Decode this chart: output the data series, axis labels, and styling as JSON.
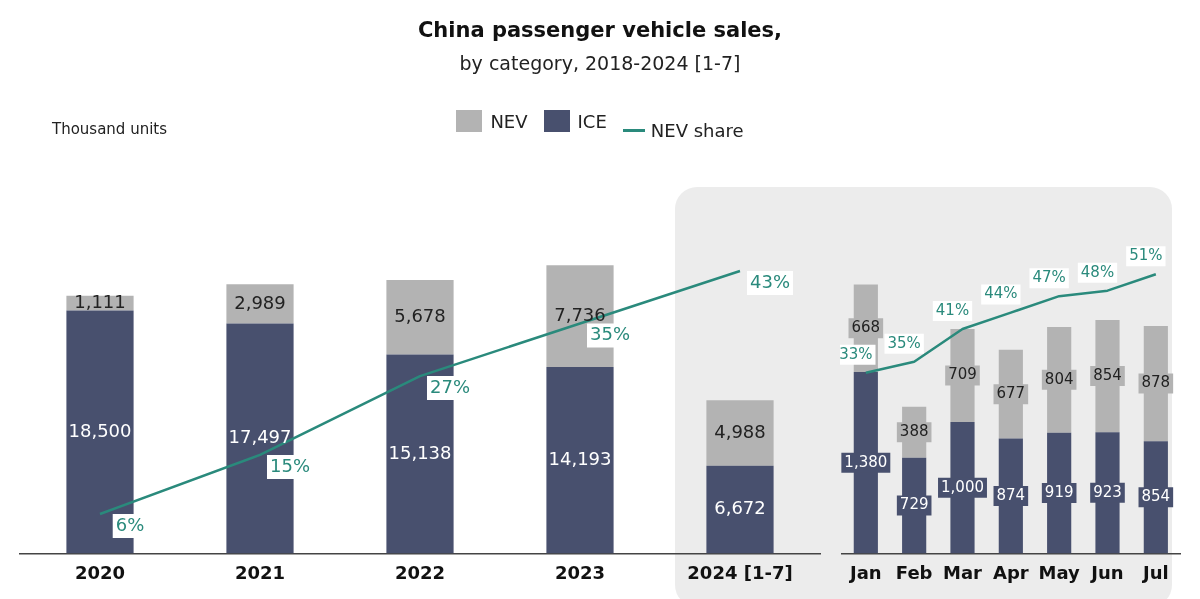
{
  "chart_data": [
    {
      "type": "bar",
      "title": "China passenger vehicle sales,",
      "subtitle": "by category, 2018-2024 [1-7]",
      "ylabel": "Thousand units",
      "categories": [
        "2020",
        "2021",
        "2022",
        "2023",
        "2024 [1-7]"
      ],
      "stacked": true,
      "legend": "top",
      "tick_labels": "x",
      "grid": false,
      "series": [
        {
          "name": "ICE",
          "color": "#48506e",
          "values": [
            18500,
            17497,
            15138,
            14193,
            6672
          ],
          "value_labels": [
            "18,500",
            "17,497",
            "15,138",
            "14,193",
            "6,672"
          ]
        },
        {
          "name": "NEV",
          "color": "#b3b3b3",
          "values": [
            1111,
            2989,
            5678,
            7736,
            4988
          ],
          "value_labels": [
            "1,111",
            "2,989",
            "5,678",
            "7,736",
            "4,988"
          ]
        },
        {
          "name": "NEV share",
          "type": "line",
          "axis": "y2",
          "color": "#2a8a7c",
          "values": [
            6,
            15,
            27,
            35,
            43
          ],
          "value_labels": [
            "6%",
            "15%",
            "27%",
            "35%",
            "43%"
          ]
        }
      ]
    },
    {
      "type": "bar",
      "categories": [
        "Jan",
        "Feb",
        "Mar",
        "Apr",
        "May",
        "Jun",
        "Jul"
      ],
      "stacked": true,
      "tick_labels": "x",
      "grid": false,
      "series": [
        {
          "color": "#48506e",
          "values": [
            1380,
            729,
            1000,
            874,
            919,
            923,
            854
          ],
          "value_labels": [
            "1,380",
            "729",
            "1,000",
            "874",
            "919",
            "923",
            "854"
          ]
        },
        {
          "color": "#b3b3b3",
          "values": [
            668,
            388,
            709,
            677,
            804,
            854,
            878
          ],
          "value_labels": [
            "668",
            "388",
            "709",
            "677",
            "804",
            "854",
            "878"
          ]
        },
        {
          "type": "line",
          "axis": "y2",
          "color": "#2a8a7c",
          "values": [
            33,
            35,
            41,
            44,
            47,
            48,
            51
          ],
          "value_labels": [
            "33%",
            "35%",
            "41%",
            "44%",
            "47%",
            "48%",
            "51%"
          ]
        }
      ]
    }
  ]
}
